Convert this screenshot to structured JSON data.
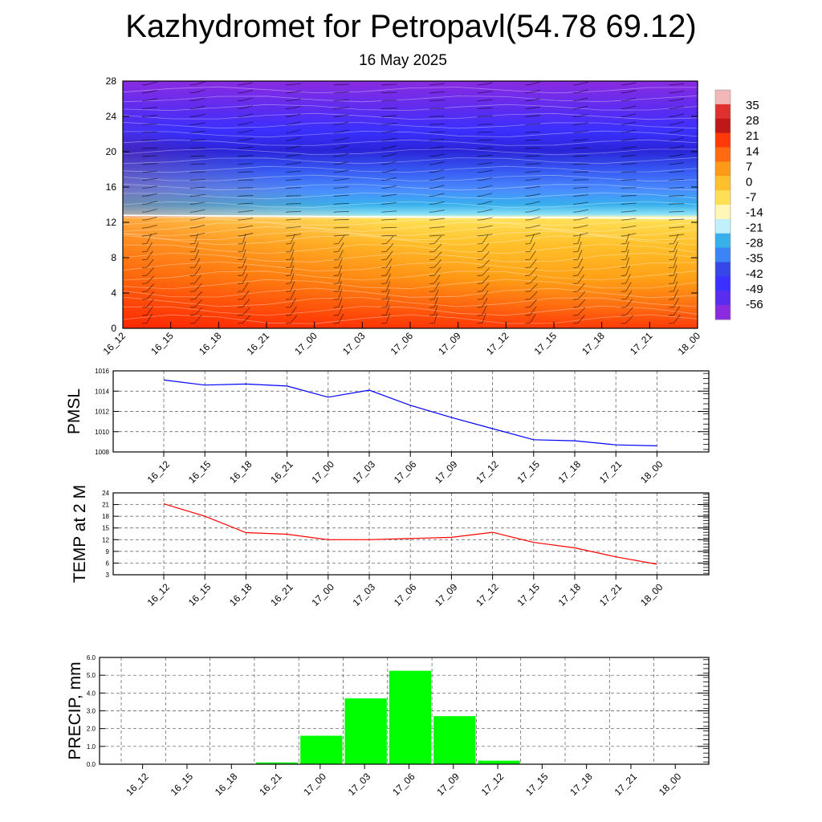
{
  "header": {
    "title": "Kazhydromet for Petropavl(54.78 69.12)",
    "subtitle": "16 May 2025"
  },
  "chart_data": [
    {
      "type": "heatmap",
      "x_tick_labels": [
        "16_12",
        "16_15",
        "16_18",
        "16_21",
        "17_00",
        "17_03",
        "17_06",
        "17_09",
        "17_12",
        "17_15",
        "17_18",
        "17_21",
        "18_00"
      ],
      "y_ticks": [
        0,
        4,
        8,
        12,
        16,
        20,
        24,
        28
      ],
      "ylim": [
        0,
        28
      ],
      "colorbar": {
        "ticks": [
          35,
          28,
          21,
          14,
          7,
          0,
          -7,
          -14,
          -21,
          -28,
          -35,
          -42,
          -49,
          -56
        ],
        "range": [
          -63,
          42
        ]
      },
      "surface_temperature": [
        21,
        18,
        14,
        13.5,
        12,
        12,
        12.5,
        12.5,
        14,
        11,
        9.5,
        7.5,
        5.7
      ],
      "freezing_level": 12.8,
      "overlay": "wind barbs and temperature contours"
    },
    {
      "type": "line",
      "ylabel": "PMSL",
      "x_tick_labels": [
        "16_12",
        "16_15",
        "16_18",
        "16_21",
        "17_00",
        "17_03",
        "17_06",
        "17_09",
        "17_12",
        "17_15",
        "17_18",
        "17_21",
        "18_00"
      ],
      "y_ticks": [
        "1008",
        "1010",
        "1012",
        "1014",
        "1016"
      ],
      "ylim": [
        1008,
        1016
      ],
      "color": "#0000ff",
      "values": [
        1015.1,
        1014.6,
        1014.7,
        1014.5,
        1013.4,
        1014.1,
        1012.6,
        1011.4,
        1010.3,
        1009.2,
        1009.1,
        1008.7,
        1008.6
      ]
    },
    {
      "type": "line",
      "ylabel": "TEMP at 2 M",
      "x_tick_labels": [
        "16_12",
        "16_15",
        "16_18",
        "16_21",
        "17_00",
        "17_03",
        "17_06",
        "17_09",
        "17_12",
        "17_15",
        "17_18",
        "17_21",
        "18_00"
      ],
      "y_ticks": [
        "3",
        "6",
        "9",
        "12",
        "15",
        "18",
        "21",
        "24"
      ],
      "ylim": [
        3,
        24
      ],
      "color": "#ff0000",
      "values": [
        21.2,
        18.0,
        13.8,
        13.4,
        12.0,
        12.0,
        12.3,
        12.6,
        13.9,
        11.3,
        9.9,
        7.6,
        5.7
      ]
    },
    {
      "type": "bar",
      "ylabel": "PRECIP, mm",
      "x_tick_labels": [
        "16_12",
        "16_15",
        "16_18",
        "16_21",
        "17_00",
        "17_03",
        "17_06",
        "17_09",
        "17_12",
        "17_15",
        "17_18",
        "17_21",
        "18_00"
      ],
      "y_ticks": [
        "0.0",
        "1.0",
        "2.0",
        "3.0",
        "4.0",
        "5.0",
        "6.0"
      ],
      "ylim": [
        0,
        6
      ],
      "color": "#00ff00",
      "values": [
        0,
        0,
        0,
        0.1,
        1.6,
        3.7,
        5.25,
        2.7,
        0.2,
        0,
        0,
        0,
        0
      ]
    }
  ]
}
